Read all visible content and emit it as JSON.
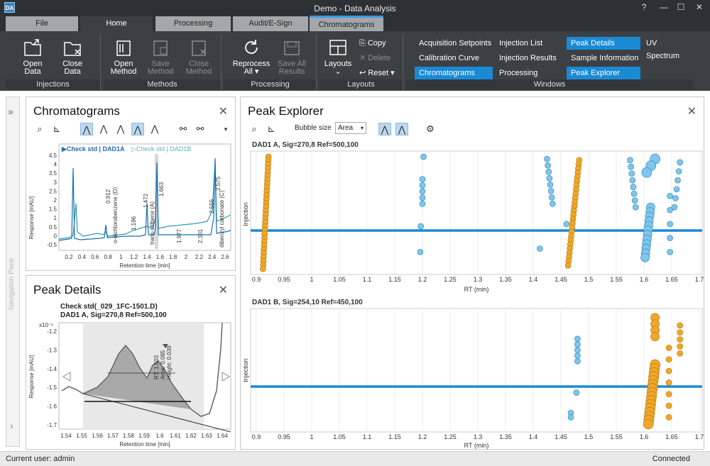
{
  "app": {
    "title": "Demo - Data Analysis",
    "logo": "DA"
  },
  "window_controls": {
    "help": "?",
    "minimize": "—",
    "maximize": "☐",
    "close": "✕"
  },
  "tabs": [
    {
      "label": "File"
    },
    {
      "label": "Home"
    },
    {
      "label": "Processing"
    },
    {
      "label": "Audit/E-Sign"
    },
    {
      "label": "Chromatograms"
    }
  ],
  "ribbon": {
    "injections": {
      "group": "Injections",
      "open_data": [
        "Open",
        "Data"
      ],
      "close_data": [
        "Close",
        "Data"
      ]
    },
    "methods": {
      "group": "Methods",
      "open_method": [
        "Open",
        "Method"
      ],
      "save_method": [
        "Save",
        "Method"
      ],
      "close_method": [
        "Close",
        "Method"
      ]
    },
    "processing": {
      "group": "Processing",
      "reprocess": [
        "Reprocess",
        "All ▾"
      ],
      "save_all": [
        "Save All",
        "Results"
      ]
    },
    "layouts": {
      "group": "Layouts",
      "layouts": "Layouts",
      "copy": "Copy",
      "delete": "Delete",
      "reset": "Reset ▾"
    },
    "windows": {
      "group": "Windows",
      "items": [
        {
          "label": "Acquisition Setpoints",
          "on": false
        },
        {
          "label": "Calibration Curve",
          "on": false
        },
        {
          "label": "Chromatograms",
          "on": true
        },
        {
          "label": "Injection List",
          "on": false
        },
        {
          "label": "Injection Results",
          "on": false
        },
        {
          "label": "Processing Method",
          "on": false
        },
        {
          "label": "Peak Details",
          "on": true
        },
        {
          "label": "Sample Information",
          "on": false
        },
        {
          "label": "Peak Explorer",
          "on": true
        },
        {
          "label": "UV Spectrum",
          "on": false
        }
      ]
    }
  },
  "nav_pane": {
    "label": "Navigation Pane",
    "expand": "»",
    "collapse": "›"
  },
  "chromatograms": {
    "title": "Chromatograms",
    "close": "✕",
    "legend": [
      "▶Check std | DAD1A",
      "▷Check std | DAD1B"
    ],
    "xlabel": "Retention time [min]",
    "ylabel": "Response [mAU]",
    "xticks": [
      "0.2",
      "0.4",
      "0.6",
      "0.8",
      "1",
      "1.2",
      "1.4",
      "1.6",
      "1.8",
      "2",
      "2.2",
      "2.4",
      "2.6"
    ],
    "yticks": [
      "4.5",
      "4",
      "3.5",
      "3",
      "2.5",
      "2",
      "1.5",
      "1",
      "0.5",
      "0",
      "-0.5"
    ],
    "peak_labels": [
      "0.912",
      "o-dichlorobenzene (D)",
      "1.196",
      "1.472",
      "trans-stilbene (A)",
      "1.663",
      "1.977",
      "2.301",
      "2.556",
      "2.575",
      "dibenzyl carbonate (C)"
    ]
  },
  "peak_details": {
    "title": "Peak Details",
    "close": "✕",
    "line1": "Check std(_029_1FC-1501.D)",
    "line2": "DAD1 A, Sig=270,8 Ref=500,100",
    "exp": "x10⁻¹",
    "yticks": [
      "-1.2",
      "-1.3",
      "-1.4",
      "-1.5",
      "-1.6",
      "-1.7"
    ],
    "xticks": [
      "1.54",
      "1.55",
      "1.56",
      "1.57",
      "1.58",
      "1.59",
      "1.6",
      "1.61",
      "1.62",
      "1.63",
      "1.64"
    ],
    "xlabel": "Retention time [min]",
    "ylabel": "Response [mAU]",
    "annotation": [
      "RT: 1.603",
      "Area: 0.085",
      "Height: 0.039"
    ]
  },
  "peak_explorer": {
    "title": "Peak Explorer",
    "close": "✕",
    "bubble_label": "Bubble size",
    "bubble_value": "Area",
    "plot1_title": "DAD1 A, Sig=270,8 Ref=500,100",
    "plot2_title": "DAD1 B, Sig=254,10 Ref=450,100",
    "xlabel": "RT (min)",
    "ylabel": "Injection",
    "xticks": [
      "0.9",
      "0.95",
      "1",
      "1.05",
      "1.1",
      "1.15",
      "1.2",
      "1.25",
      "1.3",
      "1.35",
      "1.4",
      "1.45",
      "1.5",
      "1.55",
      "1.6",
      "1.65",
      "1.7"
    ]
  },
  "colors": {
    "accent": "#1a8ad4",
    "orange": "#f0a82a",
    "blue_bubble": "#7ec6ec",
    "dark_chrome": "#3c3f44"
  },
  "status": {
    "user": "Current user: admin",
    "connection": "Connected"
  }
}
